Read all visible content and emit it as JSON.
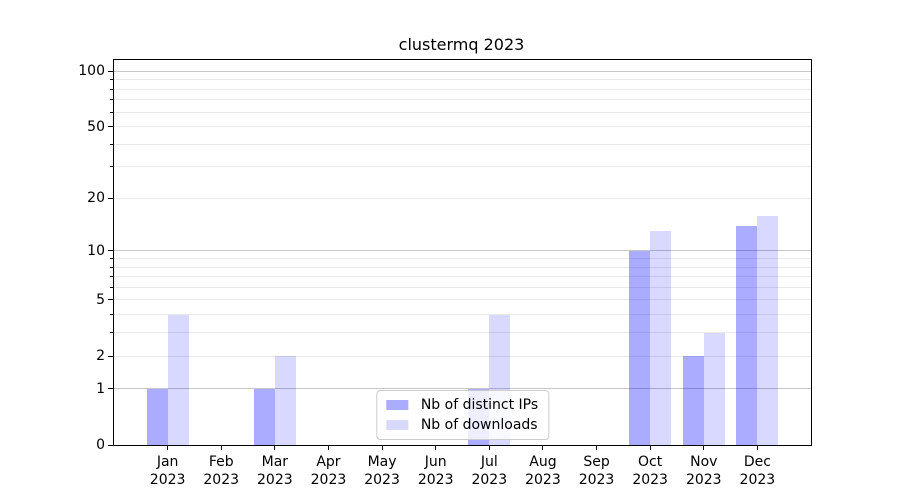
{
  "figure": {
    "title": "clustermq 2023"
  },
  "chart_data": {
    "type": "bar",
    "title": "clustermq 2023",
    "categories": [
      "Jan 2023",
      "Feb 2023",
      "Mar 2023",
      "Apr 2023",
      "May 2023",
      "Jun 2023",
      "Jul 2023",
      "Aug 2023",
      "Sep 2023",
      "Oct 2023",
      "Nov 2023",
      "Dec 2023"
    ],
    "month_labels": [
      "Jan",
      "Feb",
      "Mar",
      "Apr",
      "May",
      "Jun",
      "Jul",
      "Aug",
      "Sep",
      "Oct",
      "Nov",
      "Dec"
    ],
    "year_label": "2023",
    "series": [
      {
        "name": "Nb of distinct IPs",
        "color": "rgba(0,0,255,0.33)",
        "values": [
          1,
          0,
          1,
          0,
          0,
          0,
          1,
          0,
          0,
          10,
          2,
          14
        ]
      },
      {
        "name": "Nb of downloads",
        "color": "rgba(0,0,255,0.15)",
        "values": [
          4,
          0,
          2,
          0,
          0,
          0,
          4,
          0,
          0,
          13,
          3,
          16
        ]
      }
    ],
    "xlabel": "",
    "ylabel": "",
    "yscale": "log1p",
    "ylim": [
      0,
      115
    ],
    "yticks": [
      0,
      1,
      2,
      5,
      10,
      20,
      50,
      100
    ],
    "major_gridlines": [
      1,
      10,
      100
    ],
    "minor_gridlines": [
      2,
      3,
      4,
      5,
      6,
      7,
      8,
      9,
      20,
      30,
      40,
      50,
      60,
      70,
      80,
      90
    ],
    "grid": true,
    "legend_position": "lower center",
    "colors": {
      "major_grid": "#c6c6c6",
      "minor_grid": "#e9e9e9",
      "axis": "#000000",
      "background": "#ffffff"
    }
  }
}
